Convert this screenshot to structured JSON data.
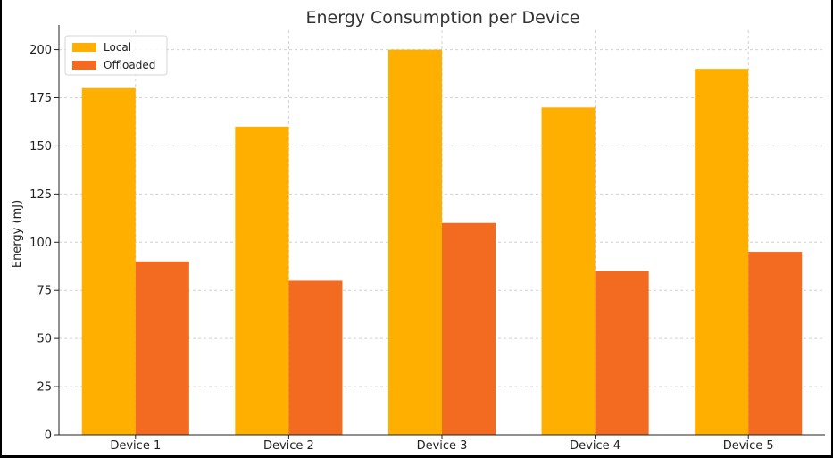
{
  "chart_data": {
    "type": "bar",
    "title": "Energy Consumption per Device",
    "xlabel": "",
    "ylabel": "Energy (mJ)",
    "categories": [
      "Device 1",
      "Device 2",
      "Device 3",
      "Device 4",
      "Device 5"
    ],
    "series": [
      {
        "name": "Local",
        "color": "#ffaf00",
        "values": [
          180,
          160,
          200,
          170,
          190
        ]
      },
      {
        "name": "Offloaded",
        "color": "#f26b21",
        "values": [
          90,
          80,
          110,
          85,
          95
        ]
      }
    ],
    "ylim": [
      0,
      210
    ],
    "yticks": [
      0,
      25,
      50,
      75,
      100,
      125,
      150,
      175,
      200
    ],
    "grid": true,
    "legend": "top-left"
  }
}
